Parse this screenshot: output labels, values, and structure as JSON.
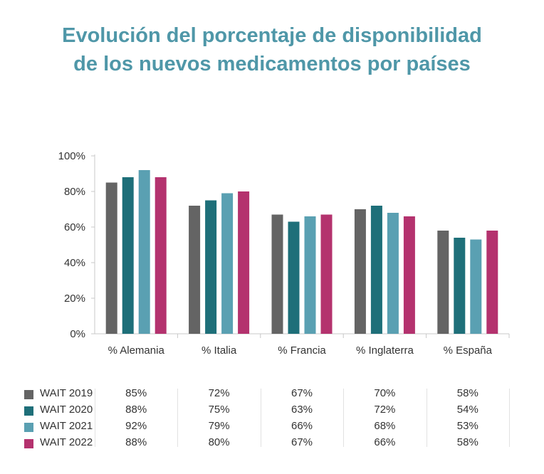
{
  "title_lines": [
    "Evolución del porcentaje de disponibilidad",
    "de los nuevos medicamentos por países"
  ],
  "colors": [
    "#646464",
    "#1e6f79",
    "#5aa0b2",
    "#b4326e"
  ],
  "chart_data": {
    "type": "bar",
    "title": "Evolución del porcentaje de disponibilidad de los nuevos medicamentos por países",
    "categories": [
      "% Alemania",
      "% Italia",
      "% Francia",
      "% Inglaterra",
      "% España"
    ],
    "series": [
      {
        "name": "WAIT 2019",
        "values": [
          85,
          72,
          67,
          70,
          58
        ],
        "labels": [
          "85%",
          "72%",
          "67%",
          "70%",
          "58%"
        ]
      },
      {
        "name": "WAIT 2020",
        "values": [
          88,
          75,
          63,
          72,
          54
        ],
        "labels": [
          "88%",
          "75%",
          "63%",
          "72%",
          "54%"
        ]
      },
      {
        "name": "WAIT 2021",
        "values": [
          92,
          79,
          66,
          68,
          53
        ],
        "labels": [
          "92%",
          "79%",
          "66%",
          "68%",
          "53%"
        ]
      },
      {
        "name": "WAIT 2022",
        "values": [
          88,
          80,
          67,
          66,
          58
        ],
        "labels": [
          "88%",
          "80%",
          "67%",
          "66%",
          "58%"
        ]
      }
    ],
    "yticks": [
      "0%",
      "20%",
      "40%",
      "60%",
      "80%",
      "100%"
    ],
    "ylim": [
      0,
      100
    ],
    "xlabel": "",
    "ylabel": "",
    "legend": "data-table-below",
    "grid": false
  }
}
